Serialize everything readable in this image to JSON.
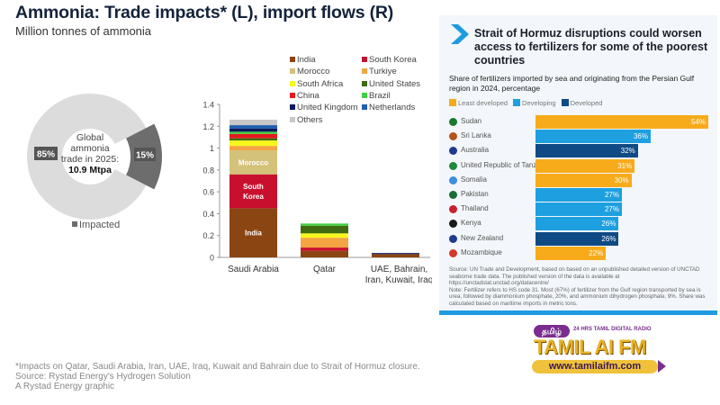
{
  "header": {
    "title": "Ammonia: Trade impacts* (L), import flows (R)",
    "subtitle": "Million tonnes of ammonia"
  },
  "donut": {
    "center_line1": "Global",
    "center_line2": "ammonia",
    "center_line3": "trade in 2025:",
    "center_value": "10.9 Mtpa",
    "not_impacted_label": "85%",
    "impacted_label": "15%",
    "impacted_share": 15,
    "legend_label": "Impacted",
    "colors": {
      "rest": "#dcdcdc",
      "impacted": "#6d6d6d"
    }
  },
  "chart_data": [
    {
      "type": "bar",
      "stacked": true,
      "title": "Ammonia trade impacts",
      "xlabel": "",
      "ylabel": "Million tonnes of ammonia",
      "ylim": [
        0,
        1.4
      ],
      "yticks": [
        "0",
        "0.2",
        "0.4",
        "0.6",
        "0.8",
        "1",
        "1.2",
        "1.4"
      ],
      "ytick_values": [
        0,
        0.2,
        0.4,
        0.6,
        0.8,
        1,
        1.2,
        1.4
      ],
      "categories": [
        "Saudi Arabia",
        "Qatar",
        "UAE, Bahrain, Iran, Kuwait, Iraq"
      ],
      "category_lines": [
        [
          "Saudi Arabia"
        ],
        [
          "Qatar"
        ],
        [
          "UAE, Bahrain,",
          "Iran, Kuwait, Iraq"
        ]
      ],
      "legend_placement": "top-right",
      "series": [
        {
          "name": "India",
          "color": "#8b4513",
          "values": [
            0.45,
            0.06,
            0.03
          ],
          "inner_label": "India"
        },
        {
          "name": "South Korea",
          "color": "#c8102e",
          "values": [
            0.31,
            0.03,
            0
          ],
          "inner_label": "South Korea"
        },
        {
          "name": "Morocco",
          "color": "#d4c27a",
          "values": [
            0.22,
            0,
            0
          ],
          "inner_label": "Morocco"
        },
        {
          "name": "Turkiye",
          "color": "#f4a442",
          "values": [
            0.04,
            0.09,
            0
          ]
        },
        {
          "name": "South Africa",
          "color": "#f7f71c",
          "values": [
            0.05,
            0.04,
            0
          ]
        },
        {
          "name": "United States",
          "color": "#3f6b12",
          "values": [
            0.02,
            0.07,
            0
          ]
        },
        {
          "name": "China",
          "color": "#e41a1c",
          "values": [
            0.04,
            0,
            0
          ]
        },
        {
          "name": "Brazil",
          "color": "#3fcf3f",
          "values": [
            0.02,
            0.02,
            0
          ]
        },
        {
          "name": "United Kingdom",
          "color": "#0a1a5c",
          "values": [
            0.03,
            0,
            0.01
          ]
        },
        {
          "name": "Netherlands",
          "color": "#1f5fb0",
          "values": [
            0.03,
            0,
            0
          ]
        },
        {
          "name": "Others",
          "color": "#c8c8c8",
          "values": [
            0.05,
            0,
            0
          ]
        }
      ]
    },
    {
      "type": "bar",
      "orientation": "horizontal",
      "title": "Strait of Hormuz disruptions could worsen access to fertilizers for some of the poorest countries",
      "subtitle": "Share of fertilizers imported by sea and originating from the Persian Gulf region in 2024, percentage",
      "xlim": [
        0,
        54
      ],
      "legend": [
        {
          "name": "Least developed",
          "color": "#f7ab1b"
        },
        {
          "name": "Developing",
          "color": "#1ea0e0"
        },
        {
          "name": "Developed",
          "color": "#0f4a85"
        }
      ],
      "categories": [
        "Sudan",
        "Sri Lanka",
        "Australia",
        "United Republic of Tanzania",
        "Somalia",
        "Pakistan",
        "Thailand",
        "Kenya",
        "New Zealand",
        "Mozambique"
      ],
      "values": [
        54,
        36,
        32,
        31,
        30,
        27,
        27,
        26,
        26,
        22
      ],
      "value_labels": [
        "54%",
        "36%",
        "32%",
        "31%",
        "30%",
        "27%",
        "27%",
        "26%",
        "26%",
        "22%"
      ],
      "groups": [
        "Least developed",
        "Developing",
        "Developed",
        "Least developed",
        "Least developed",
        "Developing",
        "Developing",
        "Developing",
        "Developed",
        "Least developed"
      ],
      "flag_colors": [
        "#1a7a2c",
        "#b5541a",
        "#1f3b8f",
        "#1e8a3a",
        "#3d8ee0",
        "#1a6b35",
        "#c8202e",
        "#1a1a1a",
        "#1f3b8f",
        "#d33a2a"
      ]
    }
  ],
  "panel": {
    "source_note_1": "Source: UN Trade and Development, based on based on an unpublished detailed version of UNCTAD seaborne trade data. The published version of the data is available at https://unctadstat.unctad.org/datacentre/",
    "source_note_2": "Note: Fertilizer refers to HS code 31. Most (67%) of fertilizer from the Gulf region transported by sea is urea, followed by diammonium phosphate, 20%, and ammonium dihydrogen phosphate, 9%. Share was calculated based on maritime imports in metric tons."
  },
  "logo": {
    "tamil": "தமிழ்",
    "tagline": "24 HRS TAMIL DIGITAL RADIO",
    "brand": "TAMIL AI FM",
    "url": "www.tamilaifm.com"
  },
  "footer": {
    "line1": "*Impacts on Qatar, Saudi Arabia, Iran, UAE, Iraq, Kuwait and Bahrain due to Strait of Hormuz closure.",
    "line2": "Source: Rystad Energy's Hydrogen Solution",
    "line3": "A Rystad Energy graphic"
  }
}
